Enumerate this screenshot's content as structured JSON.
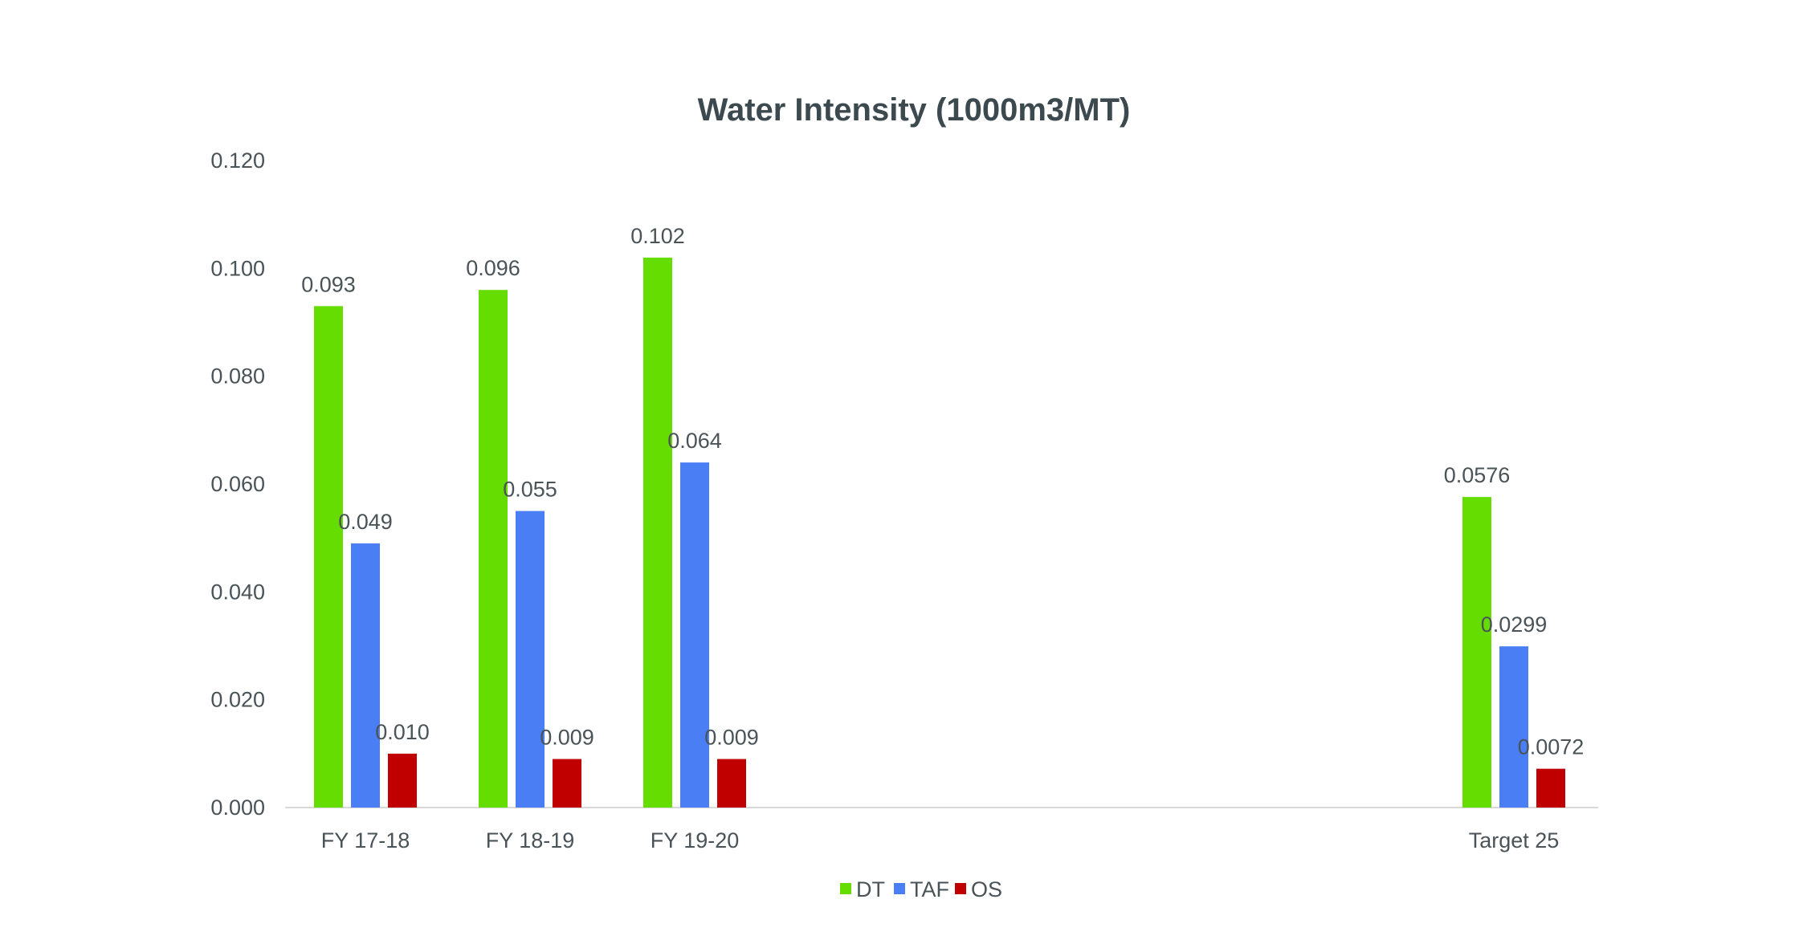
{
  "chart_data": {
    "type": "bar",
    "title": "Water Intensity (1000m3/MT)",
    "xlabel": "",
    "ylabel": "",
    "ylim": [
      0,
      0.12
    ],
    "yticks": [
      "0.000",
      "0.020",
      "0.040",
      "0.060",
      "0.080",
      "0.100",
      "0.120"
    ],
    "grid": false,
    "legend_position": "bottom",
    "categories": [
      "FY 17-18",
      "FY 18-19",
      "FY 19-20",
      "Target 25"
    ],
    "series": [
      {
        "name": "DT",
        "color": "#66dd00",
        "values": [
          0.093,
          0.096,
          0.102,
          0.0576
        ],
        "labels": [
          "0.093",
          "0.096",
          "0.102",
          "0.0576"
        ]
      },
      {
        "name": "TAF",
        "color": "#4a7ef5",
        "values": [
          0.049,
          0.055,
          0.064,
          0.0299
        ],
        "labels": [
          "0.049",
          "0.055",
          "0.064",
          "0.0299"
        ]
      },
      {
        "name": "OS",
        "color": "#c00000",
        "values": [
          0.01,
          0.009,
          0.009,
          0.0072
        ],
        "labels": [
          "0.010",
          "0.009",
          "0.009",
          "0.0072"
        ]
      }
    ]
  }
}
